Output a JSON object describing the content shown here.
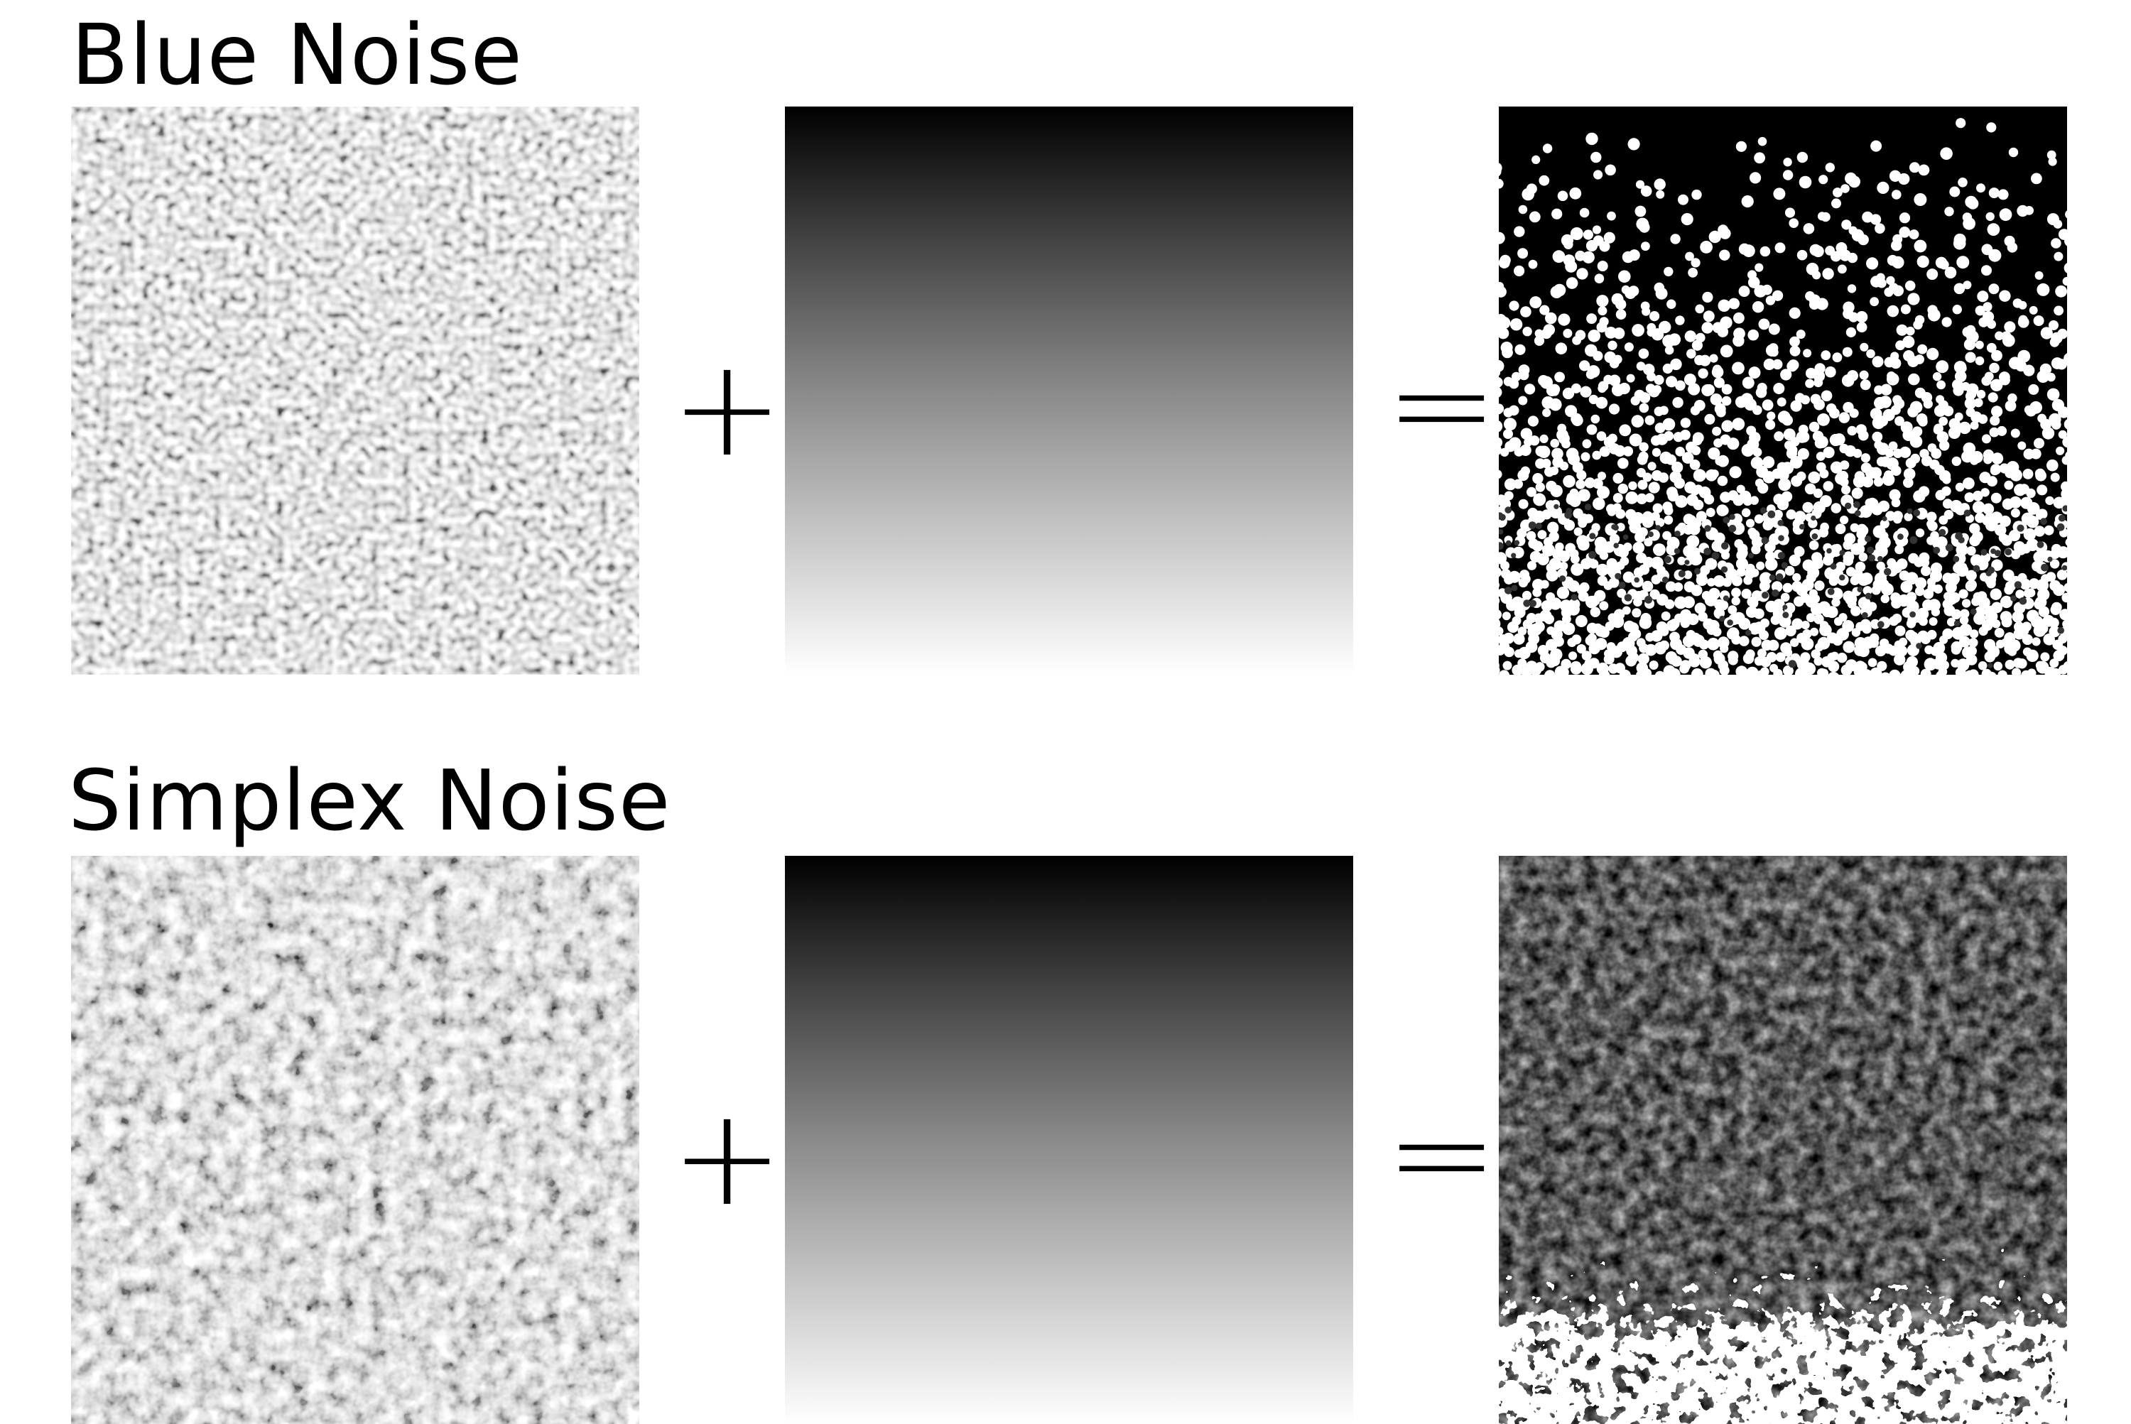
{
  "rows": [
    {
      "title": "Blue Noise",
      "plus": "+",
      "equals": "=",
      "noise_type": "blue"
    },
    {
      "title": "Simplex Noise",
      "plus": "+",
      "equals": "=",
      "noise_type": "simplex"
    }
  ],
  "colors": {
    "background": "#ffffff",
    "dark": "#000000",
    "light": "#ffffff"
  }
}
